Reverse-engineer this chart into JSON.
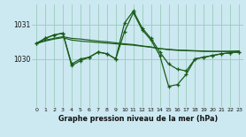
{
  "title": "Graphe pression niveau de la mer (hPa)",
  "background_color": "#cce8f0",
  "grid_color": "#99ccbb",
  "line_color": "#1a5c1a",
  "x_ticks": [
    0,
    1,
    2,
    3,
    4,
    5,
    6,
    7,
    8,
    9,
    10,
    11,
    12,
    13,
    14,
    15,
    16,
    17,
    18,
    19,
    20,
    21,
    22,
    23
  ],
  "ylim": [
    1028.6,
    1031.6
  ],
  "yticks": [
    1030,
    1031
  ],
  "ytick_labels": [
    "1030",
    "1031"
  ],
  "series": [
    {
      "y": [
        1030.45,
        1030.55,
        1030.6,
        1030.65,
        1030.6,
        1030.58,
        1030.55,
        1030.52,
        1030.5,
        1030.47,
        1030.44,
        1030.42,
        1030.38,
        1030.35,
        1030.3,
        1030.28,
        1030.26,
        1030.25,
        1030.24,
        1030.23,
        1030.22,
        1030.22,
        1030.22,
        1030.23
      ],
      "marker": false
    },
    {
      "y": [
        1030.45,
        1030.52,
        1030.58,
        1030.62,
        1030.55,
        1030.52,
        1030.5,
        1030.48,
        1030.46,
        1030.44,
        1030.42,
        1030.4,
        1030.37,
        1030.34,
        1030.3,
        1030.27,
        1030.25,
        1030.24,
        1030.23,
        1030.22,
        1030.22,
        1030.22,
        1030.22,
        1030.23
      ],
      "marker": false
    },
    {
      "y": [
        1030.45,
        1030.6,
        1030.7,
        1030.75,
        1029.85,
        1030.0,
        1030.05,
        1030.2,
        1030.15,
        1030.0,
        1031.05,
        1031.4,
        1030.9,
        1030.6,
        1030.2,
        1029.85,
        1029.7,
        1029.65,
        1030.0,
        1030.05,
        1030.1,
        1030.15,
        1030.18,
        1030.2
      ],
      "marker": true
    },
    {
      "y": [
        1030.45,
        1030.6,
        1030.7,
        1030.75,
        1029.8,
        1029.95,
        1030.05,
        1030.2,
        1030.15,
        1030.0,
        1030.8,
        1031.35,
        1030.85,
        1030.55,
        1030.1,
        1029.2,
        1029.25,
        1029.55,
        1030.0,
        1030.05,
        1030.1,
        1030.15,
        1030.18,
        1030.2
      ],
      "marker": true
    }
  ]
}
